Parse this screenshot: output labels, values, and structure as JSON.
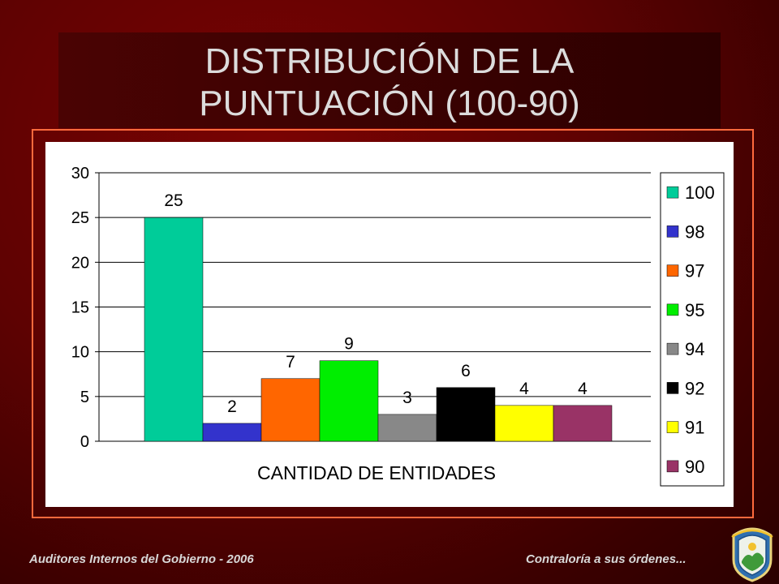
{
  "title_line1": "DISTRIBUCIÓN DE LA",
  "title_line2": "PUNTUACIÓN (100-90)",
  "footer": {
    "left": "Auditores Internos del Gobierno - 2006",
    "right": "Contraloría a sus órdenes..."
  },
  "chart_data": {
    "type": "bar",
    "xlabel": "CANTIDAD DE ENTIDADES",
    "ylim": [
      0,
      30
    ],
    "yticks": [
      0,
      5,
      10,
      15,
      20,
      25,
      30
    ],
    "grid": true,
    "legend_position": "right",
    "series": [
      {
        "name": "100",
        "value": 25,
        "color": "#00cc99"
      },
      {
        "name": "98",
        "value": 2,
        "color": "#3333cc"
      },
      {
        "name": "97",
        "value": 7,
        "color": "#ff6600"
      },
      {
        "name": "95",
        "value": 9,
        "color": "#00ee00"
      },
      {
        "name": "94",
        "value": 3,
        "color": "#888888"
      },
      {
        "name": "92",
        "value": 6,
        "color": "#000000"
      },
      {
        "name": "91",
        "value": 4,
        "color": "#ffff00"
      },
      {
        "name": "90",
        "value": 4,
        "color": "#993366"
      }
    ]
  }
}
